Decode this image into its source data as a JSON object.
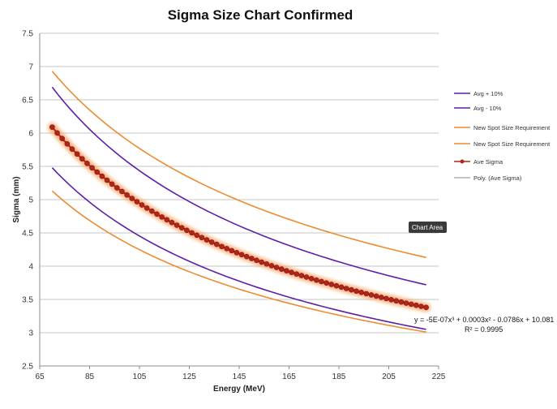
{
  "chart_data": {
    "type": "line",
    "title": "Sigma Size Chart Confirmed",
    "xlabel": "Energy (MeV)",
    "ylabel": "Sigma (mm)",
    "xlim": [
      65,
      225
    ],
    "ylim": [
      2.5,
      7.5
    ],
    "x_ticks": [
      65,
      85,
      105,
      125,
      145,
      165,
      185,
      205,
      225
    ],
    "y_ticks": [
      "2.5",
      "3",
      "3.5",
      "4",
      "4.5",
      "5",
      "5.5",
      "6",
      "6.5",
      "7",
      "7.5"
    ],
    "grid": "horizontal",
    "legend_position": "right",
    "series": [
      {
        "name": "Avg + 10%",
        "color": "#5b1fa8",
        "x": [
          70,
          220
        ],
        "values": [
          6.69,
          3.72
        ],
        "style": "line"
      },
      {
        "name": "Avg - 10%",
        "color": "#5b1fa8",
        "x": [
          70,
          220
        ],
        "values": [
          5.48,
          3.05
        ],
        "style": "line"
      },
      {
        "name": "New Spot Size Requirement",
        "color": "#ed8b2f",
        "x": [
          70,
          220
        ],
        "values": [
          6.93,
          4.13
        ],
        "style": "line"
      },
      {
        "name": "New Spot Size Requirement",
        "color": "#ed8b2f",
        "x": [
          70,
          220
        ],
        "values": [
          5.13,
          3.01
        ],
        "style": "line"
      },
      {
        "name": "Ave Sigma",
        "color": "#b5241c",
        "x": [
          70,
          220
        ],
        "values": [
          6.09,
          3.38
        ],
        "style": "line-markers",
        "glow": "#f7a86a"
      },
      {
        "name": "Poly. (Ave Sigma)",
        "color": "#888888",
        "style": "trendline"
      }
    ],
    "trendline_equation": "y = -5E-07x³ + 0.0003x² - 0.0786x + 10.081",
    "trendline_r2": "R² = 0.9995",
    "tooltip": "Chart Area"
  }
}
